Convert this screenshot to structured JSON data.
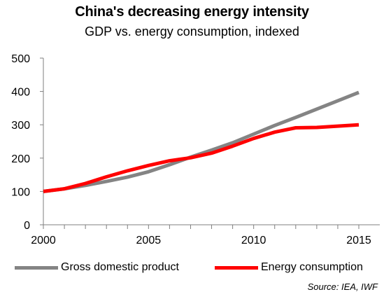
{
  "header": {
    "title": "China's decreasing energy intensity",
    "subtitle": "GDP vs. energy consumption, indexed"
  },
  "source_note": "Source: IEA, IWF",
  "colors": {
    "gdp": "#848484",
    "energy": "#ff0000",
    "axis": "#7f7f7f",
    "grid": "#e6e6e6"
  },
  "chart_data": {
    "type": "line",
    "title": "China's decreasing energy intensity",
    "subtitle": "GDP vs. energy consumption, indexed",
    "xlabel": "",
    "ylabel": "",
    "x": [
      2000,
      2001,
      2002,
      2003,
      2004,
      2005,
      2006,
      2007,
      2008,
      2009,
      2010,
      2011,
      2012,
      2013,
      2014,
      2015
    ],
    "xlim": [
      2000,
      2015
    ],
    "ylim": [
      0,
      500
    ],
    "x_ticks": [
      2000,
      2005,
      2010,
      2015
    ],
    "y_ticks": [
      0,
      100,
      200,
      300,
      400,
      500
    ],
    "grid": false,
    "legend_position": "bottom",
    "series": [
      {
        "name": "Gross domestic product",
        "values": [
          100,
          108,
          118,
          130,
          143,
          159,
          180,
          203,
          224,
          246,
          272,
          298,
          322,
          347,
          372,
          397
        ]
      },
      {
        "name": "Energy consumption",
        "values": [
          100,
          108,
          124,
          144,
          162,
          178,
          192,
          201,
          215,
          236,
          259,
          278,
          291,
          292,
          296,
          300
        ]
      }
    ]
  }
}
